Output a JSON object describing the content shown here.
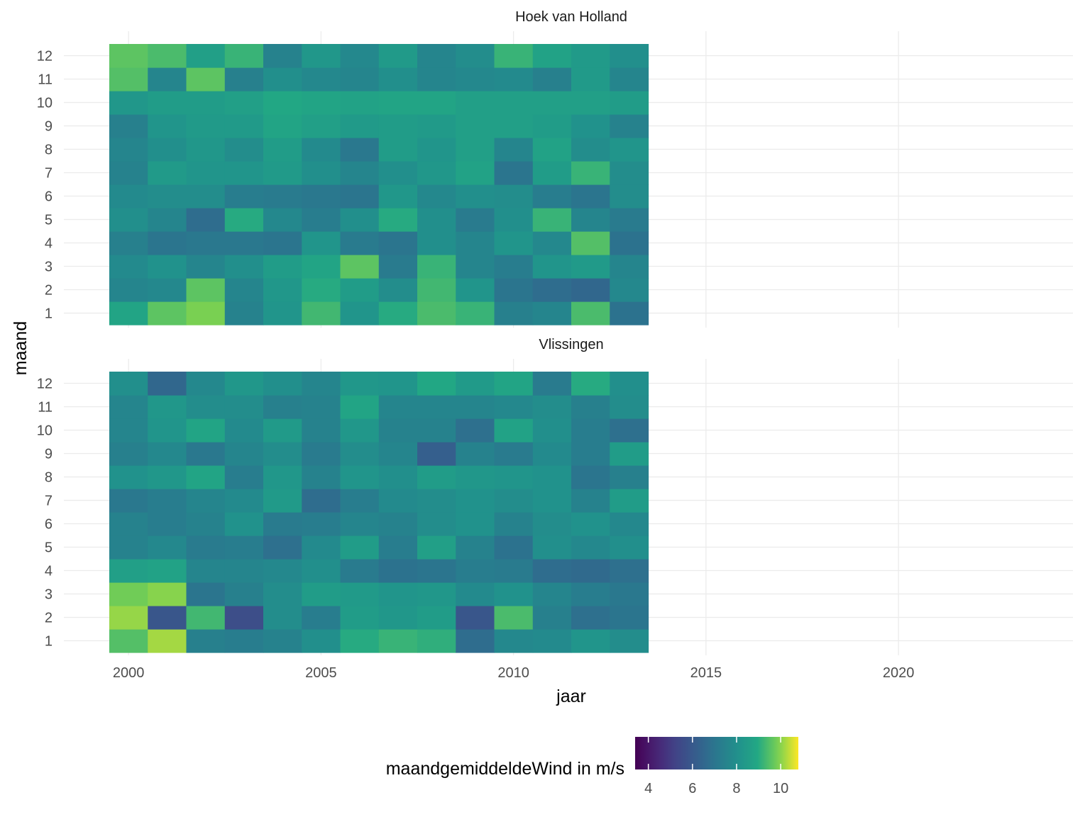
{
  "chart_data": {
    "type": "heatmap",
    "xlabel": "jaar",
    "ylabel": "maand",
    "x_ticks": [
      2000,
      2005,
      2010,
      2015,
      2020
    ],
    "y_ticks": [
      1,
      2,
      3,
      4,
      5,
      6,
      7,
      8,
      9,
      10,
      11,
      12
    ],
    "x_range": [
      2000,
      2023
    ],
    "months": [
      1,
      2,
      3,
      4,
      5,
      6,
      7,
      8,
      9,
      10,
      11,
      12
    ],
    "color_scale": {
      "name": "viridis",
      "title": "maandgemiddeldeWind in m/s",
      "ticks": [
        4,
        6,
        8,
        10
      ],
      "domain": [
        3.4,
        10.8
      ]
    },
    "grid": true,
    "legend_position": "bottom",
    "panels": [
      {
        "title": "Hoek van Holland",
        "values": [
          [
            8.8,
            9.6,
            9.9,
            7.5,
            8.2,
            9.3,
            8.2,
            9.0,
            9.4,
            9.2,
            7.4,
            7.6,
            9.4,
            6.9
          ],
          [
            7.6,
            7.7,
            9.6,
            7.6,
            8.3,
            9.0,
            8.5,
            7.9,
            9.3,
            8.2,
            7.0,
            6.7,
            6.5,
            7.7
          ],
          [
            7.8,
            8.1,
            7.6,
            8.0,
            8.5,
            8.8,
            9.6,
            7.2,
            9.2,
            7.6,
            7.3,
            8.2,
            8.4,
            7.6
          ],
          [
            7.4,
            7.0,
            7.1,
            7.1,
            7.0,
            8.2,
            7.2,
            7.0,
            8.0,
            7.6,
            8.2,
            7.7,
            9.5,
            6.9
          ],
          [
            8.0,
            7.6,
            6.7,
            9.0,
            7.7,
            7.3,
            8.0,
            9.0,
            8.0,
            7.2,
            8.0,
            9.2,
            7.6,
            7.2
          ],
          [
            7.8,
            7.9,
            7.9,
            7.3,
            7.2,
            7.1,
            7.0,
            8.3,
            7.7,
            8.0,
            7.9,
            7.3,
            7.0,
            7.9
          ],
          [
            7.5,
            8.4,
            8.2,
            8.2,
            8.4,
            8.0,
            7.6,
            8.0,
            8.3,
            8.7,
            7.0,
            8.5,
            9.2,
            7.9
          ],
          [
            7.6,
            8.0,
            8.3,
            7.9,
            8.5,
            7.8,
            7.1,
            8.5,
            8.2,
            8.6,
            7.6,
            8.7,
            7.9,
            8.2
          ],
          [
            7.4,
            8.2,
            8.4,
            8.4,
            8.8,
            8.6,
            8.4,
            8.5,
            8.4,
            8.6,
            8.6,
            8.5,
            8.1,
            7.5
          ],
          [
            8.3,
            8.5,
            8.5,
            8.6,
            8.9,
            8.8,
            8.7,
            8.8,
            8.8,
            8.6,
            8.6,
            8.6,
            8.6,
            8.5
          ],
          [
            9.5,
            7.6,
            9.6,
            7.4,
            8.0,
            7.7,
            7.6,
            8.0,
            7.6,
            7.7,
            7.8,
            7.4,
            8.4,
            7.6
          ],
          [
            9.6,
            9.4,
            8.6,
            9.2,
            7.5,
            8.3,
            7.7,
            8.4,
            7.6,
            7.9,
            9.2,
            8.7,
            8.4,
            8.0
          ]
        ]
      },
      {
        "title": "Vlissingen",
        "values": [
          [
            9.5,
            10.2,
            7.4,
            7.3,
            7.5,
            8.0,
            9.0,
            9.2,
            9.1,
            6.7,
            7.7,
            7.8,
            8.2,
            7.9
          ],
          [
            10.1,
            5.9,
            9.3,
            5.6,
            7.9,
            7.3,
            8.5,
            8.3,
            8.5,
            5.9,
            9.4,
            7.4,
            6.8,
            7.0
          ],
          [
            9.8,
            10.0,
            7.0,
            7.4,
            7.9,
            8.5,
            8.4,
            8.2,
            8.3,
            7.8,
            8.1,
            7.6,
            7.3,
            7.1
          ],
          [
            8.6,
            8.7,
            7.6,
            7.6,
            7.7,
            8.0,
            7.2,
            6.9,
            7.0,
            7.3,
            7.2,
            6.7,
            6.6,
            6.8
          ],
          [
            7.5,
            7.7,
            7.2,
            7.3,
            6.8,
            7.8,
            8.5,
            7.3,
            8.6,
            7.5,
            6.9,
            8.0,
            7.7,
            8.0
          ],
          [
            7.5,
            7.3,
            7.5,
            8.1,
            7.2,
            7.3,
            7.6,
            7.5,
            7.9,
            8.1,
            7.5,
            7.9,
            8.1,
            7.7
          ],
          [
            7.1,
            7.3,
            7.6,
            7.8,
            8.4,
            6.7,
            7.3,
            7.8,
            7.9,
            8.1,
            7.9,
            8.1,
            7.5,
            8.5
          ],
          [
            8.1,
            8.3,
            8.8,
            7.3,
            8.3,
            7.5,
            8.2,
            8.0,
            8.5,
            8.3,
            8.2,
            8.1,
            7.0,
            7.4
          ],
          [
            7.4,
            7.7,
            7.1,
            7.6,
            7.9,
            7.2,
            7.9,
            7.6,
            6.2,
            7.5,
            7.2,
            7.8,
            7.3,
            8.5
          ],
          [
            7.6,
            8.2,
            8.8,
            7.8,
            8.4,
            7.5,
            8.3,
            7.5,
            7.5,
            6.8,
            8.7,
            8.0,
            7.3,
            6.8
          ],
          [
            7.6,
            8.3,
            7.9,
            7.9,
            7.4,
            7.5,
            8.8,
            7.6,
            7.6,
            7.6,
            7.7,
            7.9,
            7.4,
            7.9
          ],
          [
            8.0,
            6.5,
            7.7,
            8.3,
            8.0,
            7.6,
            8.3,
            8.2,
            8.9,
            8.4,
            8.8,
            7.2,
            9.0,
            8.0
          ]
        ]
      }
    ]
  }
}
